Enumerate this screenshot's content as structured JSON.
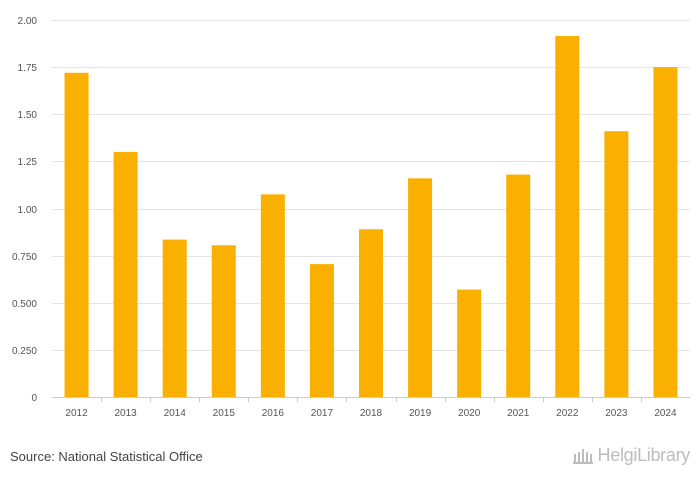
{
  "chart_data": {
    "type": "bar",
    "categories": [
      "2012",
      "2013",
      "2014",
      "2015",
      "2016",
      "2017",
      "2018",
      "2019",
      "2020",
      "2021",
      "2022",
      "2023",
      "2024"
    ],
    "values": [
      1.72,
      1.3,
      0.835,
      0.805,
      1.075,
      0.705,
      0.89,
      1.16,
      0.57,
      1.18,
      1.915,
      1.41,
      1.75
    ],
    "ylim": [
      0,
      2.0
    ],
    "yticks": [
      0,
      0.25,
      0.5,
      0.75,
      1.0,
      1.25,
      1.5,
      1.75,
      2.0
    ],
    "ytick_labels": [
      "0",
      "0.250",
      "0.500",
      "0.750",
      "1.00",
      "1.25",
      "1.50",
      "1.75",
      "2.00"
    ],
    "bar_color": "#f9b000",
    "grid": true,
    "title": "",
    "xlabel": "",
    "ylabel": ""
  },
  "footer": {
    "source": "Source: National Statistical Office",
    "brand_name": "HelgiLibrary",
    "brand_icon": "library-building-icon"
  }
}
